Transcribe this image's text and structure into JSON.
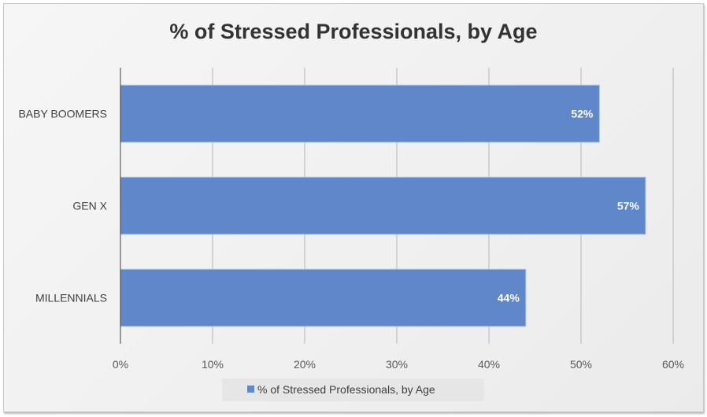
{
  "chart_data": {
    "type": "bar",
    "orientation": "horizontal",
    "title": "% of Stressed Professionals, by Age",
    "categories": [
      "BABY BOOMERS",
      "GEN X",
      "MILLENNIALS"
    ],
    "series": [
      {
        "name": "% of Stressed Professionals, by Age",
        "values": [
          52,
          57,
          44
        ],
        "color": "#5f87c9"
      }
    ],
    "data_labels": [
      "52%",
      "57%",
      "44%"
    ],
    "xlim": [
      0,
      60
    ],
    "x_ticks": [
      "0%",
      "10%",
      "20%",
      "30%",
      "40%",
      "50%",
      "60%"
    ],
    "xlabel": "",
    "ylabel": "",
    "grid": true,
    "legend_position": "bottom"
  }
}
